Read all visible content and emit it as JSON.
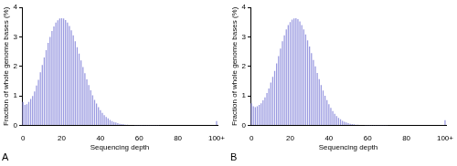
{
  "chart_data": [
    {
      "type": "bar",
      "title": "A",
      "xlabel": "Sequencing depth",
      "ylabel": "Fraction of whole genome bases (%)",
      "categories": [
        "0",
        null,
        null,
        null,
        null,
        null,
        null,
        null,
        null,
        null,
        null,
        null,
        null,
        null,
        null,
        null,
        null,
        null,
        null,
        null,
        "20",
        null,
        null,
        null,
        null,
        null,
        null,
        null,
        null,
        null,
        null,
        null,
        null,
        null,
        null,
        null,
        null,
        null,
        null,
        null,
        "40",
        null,
        null,
        null,
        null,
        null,
        null,
        null,
        null,
        null,
        null,
        null,
        null,
        null,
        null,
        null,
        null,
        null,
        null,
        null,
        "60",
        null,
        null,
        null,
        null,
        null,
        null,
        null,
        null,
        null,
        null,
        null,
        null,
        null,
        null,
        null,
        null,
        null,
        null,
        null,
        "80",
        null,
        null,
        null,
        null,
        null,
        null,
        null,
        null,
        null,
        null,
        null,
        null,
        null,
        null,
        null,
        null,
        null,
        null,
        null,
        "100+"
      ],
      "values": [
        0.8,
        0.7,
        0.72,
        0.8,
        0.9,
        1.0,
        1.15,
        1.35,
        1.55,
        1.8,
        2.05,
        2.3,
        2.55,
        2.8,
        3.0,
        3.2,
        3.35,
        3.48,
        3.56,
        3.62,
        3.63,
        3.62,
        3.57,
        3.48,
        3.37,
        3.22,
        3.05,
        2.85,
        2.65,
        2.43,
        2.2,
        1.98,
        1.77,
        1.56,
        1.37,
        1.19,
        1.02,
        0.87,
        0.74,
        0.62,
        0.52,
        0.43,
        0.35,
        0.29,
        0.24,
        0.19,
        0.15,
        0.12,
        0.1,
        0.08,
        0.06,
        0.05,
        0.04,
        0.03,
        0.03,
        0.02,
        0.02,
        0.02,
        0.01,
        0.01,
        0.01,
        0.01,
        0.01,
        0.01,
        0.01,
        0.01,
        0.01,
        0.01,
        0.01,
        0.01,
        0.01,
        0,
        0,
        0,
        0,
        0,
        0,
        0,
        0,
        0,
        0,
        0,
        0,
        0,
        0,
        0,
        0,
        0,
        0,
        0,
        0,
        0,
        0,
        0,
        0,
        0,
        0,
        0,
        0,
        0,
        0.15
      ],
      "color": "#9a9ae0",
      "ylim": [
        0,
        4
      ],
      "yticks": [
        0,
        1,
        2,
        3,
        4
      ],
      "grid": false
    },
    {
      "type": "bar",
      "title": "B",
      "xlabel": "Sequencing depth",
      "ylabel": "Fraction of whole genome bases (%)",
      "categories": [
        "0",
        null,
        null,
        null,
        null,
        null,
        null,
        null,
        null,
        null,
        null,
        null,
        null,
        null,
        null,
        null,
        null,
        null,
        null,
        null,
        "20",
        null,
        null,
        null,
        null,
        null,
        null,
        null,
        null,
        null,
        null,
        null,
        null,
        null,
        null,
        null,
        null,
        null,
        null,
        null,
        "40",
        null,
        null,
        null,
        null,
        null,
        null,
        null,
        null,
        null,
        null,
        null,
        null,
        null,
        null,
        null,
        null,
        null,
        null,
        null,
        "60",
        null,
        null,
        null,
        null,
        null,
        null,
        null,
        null,
        null,
        null,
        null,
        null,
        null,
        null,
        null,
        null,
        null,
        null,
        null,
        "80",
        null,
        null,
        null,
        null,
        null,
        null,
        null,
        null,
        null,
        null,
        null,
        null,
        null,
        null,
        null,
        null,
        null,
        null,
        null,
        "100+"
      ],
      "values": [
        0.75,
        0.65,
        0.62,
        0.65,
        0.7,
        0.75,
        0.85,
        0.95,
        1.1,
        1.25,
        1.45,
        1.65,
        1.85,
        2.1,
        2.35,
        2.6,
        2.85,
        3.05,
        3.25,
        3.4,
        3.5,
        3.58,
        3.62,
        3.63,
        3.6,
        3.52,
        3.4,
        3.25,
        3.08,
        2.88,
        2.67,
        2.45,
        2.22,
        2.0,
        1.78,
        1.57,
        1.37,
        1.18,
        1.01,
        0.86,
        0.72,
        0.6,
        0.49,
        0.4,
        0.32,
        0.26,
        0.21,
        0.16,
        0.13,
        0.1,
        0.08,
        0.06,
        0.05,
        0.04,
        0.03,
        0.03,
        0.02,
        0.02,
        0.02,
        0.01,
        0.01,
        0.01,
        0.01,
        0.01,
        0.01,
        0.01,
        0.01,
        0.01,
        0.01,
        0.01,
        0.01,
        0,
        0,
        0,
        0,
        0,
        0,
        0,
        0,
        0,
        0,
        0,
        0,
        0,
        0,
        0,
        0,
        0,
        0,
        0,
        0,
        0,
        0,
        0,
        0,
        0,
        0,
        0,
        0,
        0,
        0.18
      ],
      "color": "#9a9ae0",
      "ylim": [
        0,
        4
      ],
      "yticks": [
        0,
        1,
        2,
        3,
        4
      ],
      "grid": false
    }
  ]
}
